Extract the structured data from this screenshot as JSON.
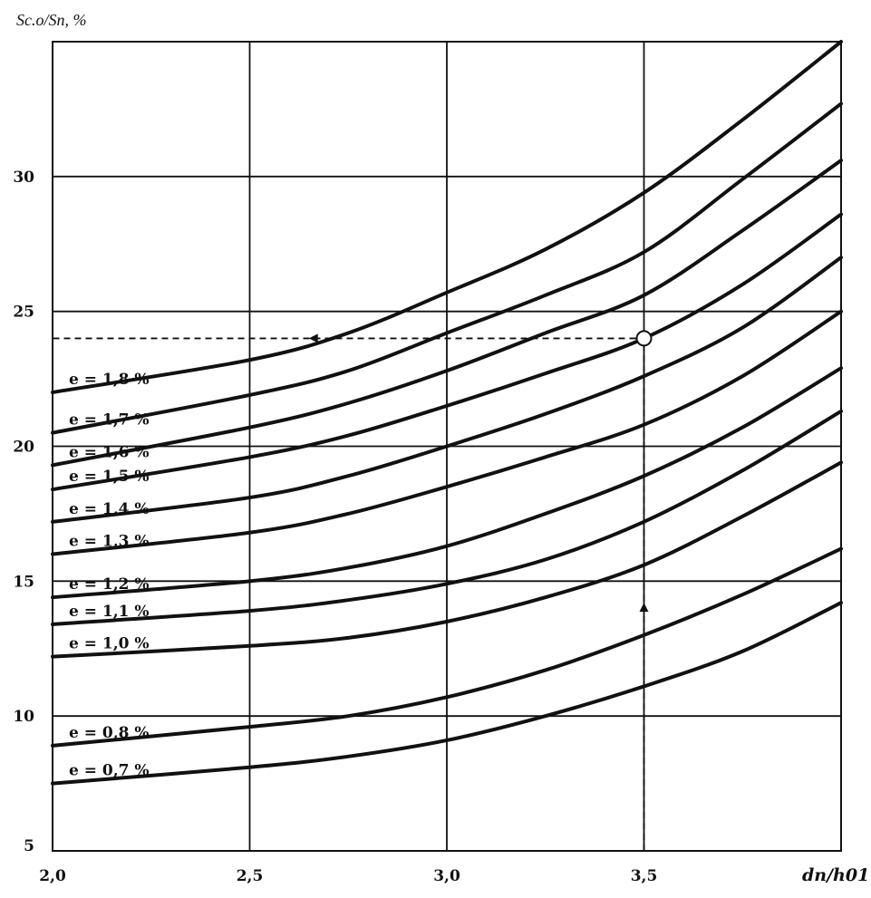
{
  "chart_data": {
    "type": "line",
    "ylabel": "Sc.o/Sп, %",
    "xlabel": "dп/h01",
    "xlim": [
      2.0,
      4.0
    ],
    "ylim": [
      5,
      35
    ],
    "x_ticks": [
      "2,0",
      "2,5",
      "3,0",
      "3,5"
    ],
    "y_ticks": [
      "5",
      "10",
      "15",
      "20",
      "25",
      "30"
    ],
    "grid": true,
    "x": [
      2.0,
      2.5,
      2.75,
      3.0,
      3.25,
      3.5,
      3.75,
      4.0
    ],
    "series": [
      {
        "name": "e = 1,8 %",
        "values": [
          22.0,
          23.2,
          24.2,
          25.7,
          27.3,
          29.4,
          32.1,
          35.0
        ]
      },
      {
        "name": "e = 1,7 %",
        "values": [
          20.5,
          21.9,
          22.8,
          24.2,
          25.6,
          27.2,
          29.9,
          32.7
        ]
      },
      {
        "name": "e = 1,6 %",
        "values": [
          19.3,
          20.7,
          21.6,
          22.8,
          24.2,
          25.6,
          28.0,
          30.6
        ]
      },
      {
        "name": "e = 1,5 %",
        "values": [
          18.4,
          19.6,
          20.4,
          21.5,
          22.7,
          24.0,
          26.0,
          28.6
        ]
      },
      {
        "name": "e = 1,4 %",
        "values": [
          17.2,
          18.1,
          18.9,
          20.0,
          21.2,
          22.6,
          24.4,
          27.0
        ]
      },
      {
        "name": "e = 1,3 %",
        "values": [
          16.0,
          16.8,
          17.5,
          18.5,
          19.6,
          20.8,
          22.6,
          25.0
        ]
      },
      {
        "name": "e = 1,2 %",
        "values": [
          14.4,
          15.0,
          15.5,
          16.3,
          17.5,
          18.9,
          20.7,
          22.9
        ]
      },
      {
        "name": "e = 1,1 %",
        "values": [
          13.4,
          13.9,
          14.3,
          14.9,
          15.8,
          17.2,
          19.1,
          21.3
        ]
      },
      {
        "name": "e = 1,0 %",
        "values": [
          12.2,
          12.6,
          12.9,
          13.5,
          14.4,
          15.6,
          17.4,
          19.4
        ]
      },
      {
        "name": "e = 0,8 %",
        "values": [
          8.9,
          9.6,
          10.0,
          10.7,
          11.7,
          13.0,
          14.5,
          16.2
        ]
      },
      {
        "name": "e = 0,7 %",
        "values": [
          7.5,
          8.1,
          8.5,
          9.1,
          10.0,
          11.1,
          12.4,
          14.2
        ]
      }
    ],
    "example_point": {
      "x": 3.5,
      "y": 24.0
    },
    "colors": {
      "line": "#111111",
      "grid": "#111111",
      "background": "#ffffff"
    }
  }
}
